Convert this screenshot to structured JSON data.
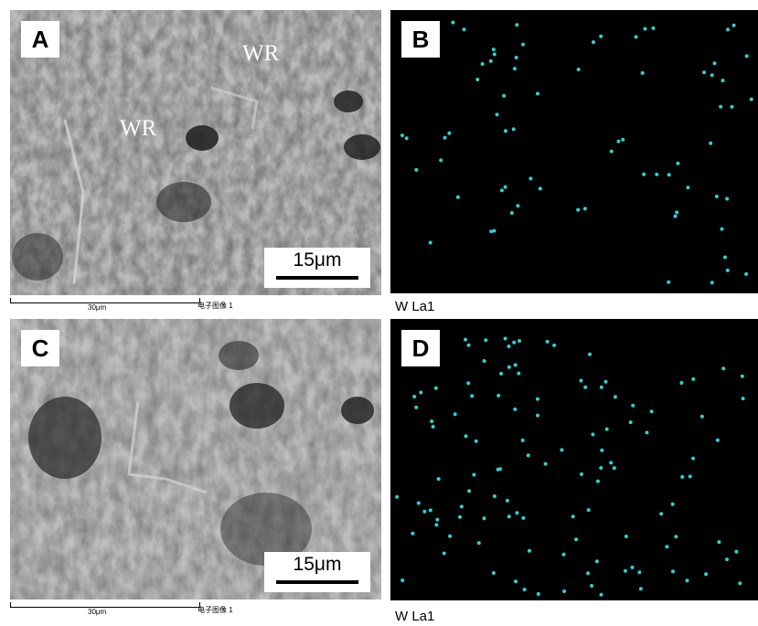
{
  "panels": {
    "A": {
      "label": "A",
      "scale_bar": "15μm",
      "annotations": [
        "WR",
        "WR"
      ]
    },
    "B": {
      "label": "B",
      "caption": "W La1"
    },
    "C": {
      "label": "C",
      "scale_bar": "15μm"
    },
    "D": {
      "label": "D",
      "caption": "W La1"
    }
  },
  "footer": {
    "ruler_label": "30μm",
    "image_label": "电子图像 1"
  },
  "colors": {
    "map_dot": "#2ad4d4",
    "map_bg": "#000000"
  }
}
